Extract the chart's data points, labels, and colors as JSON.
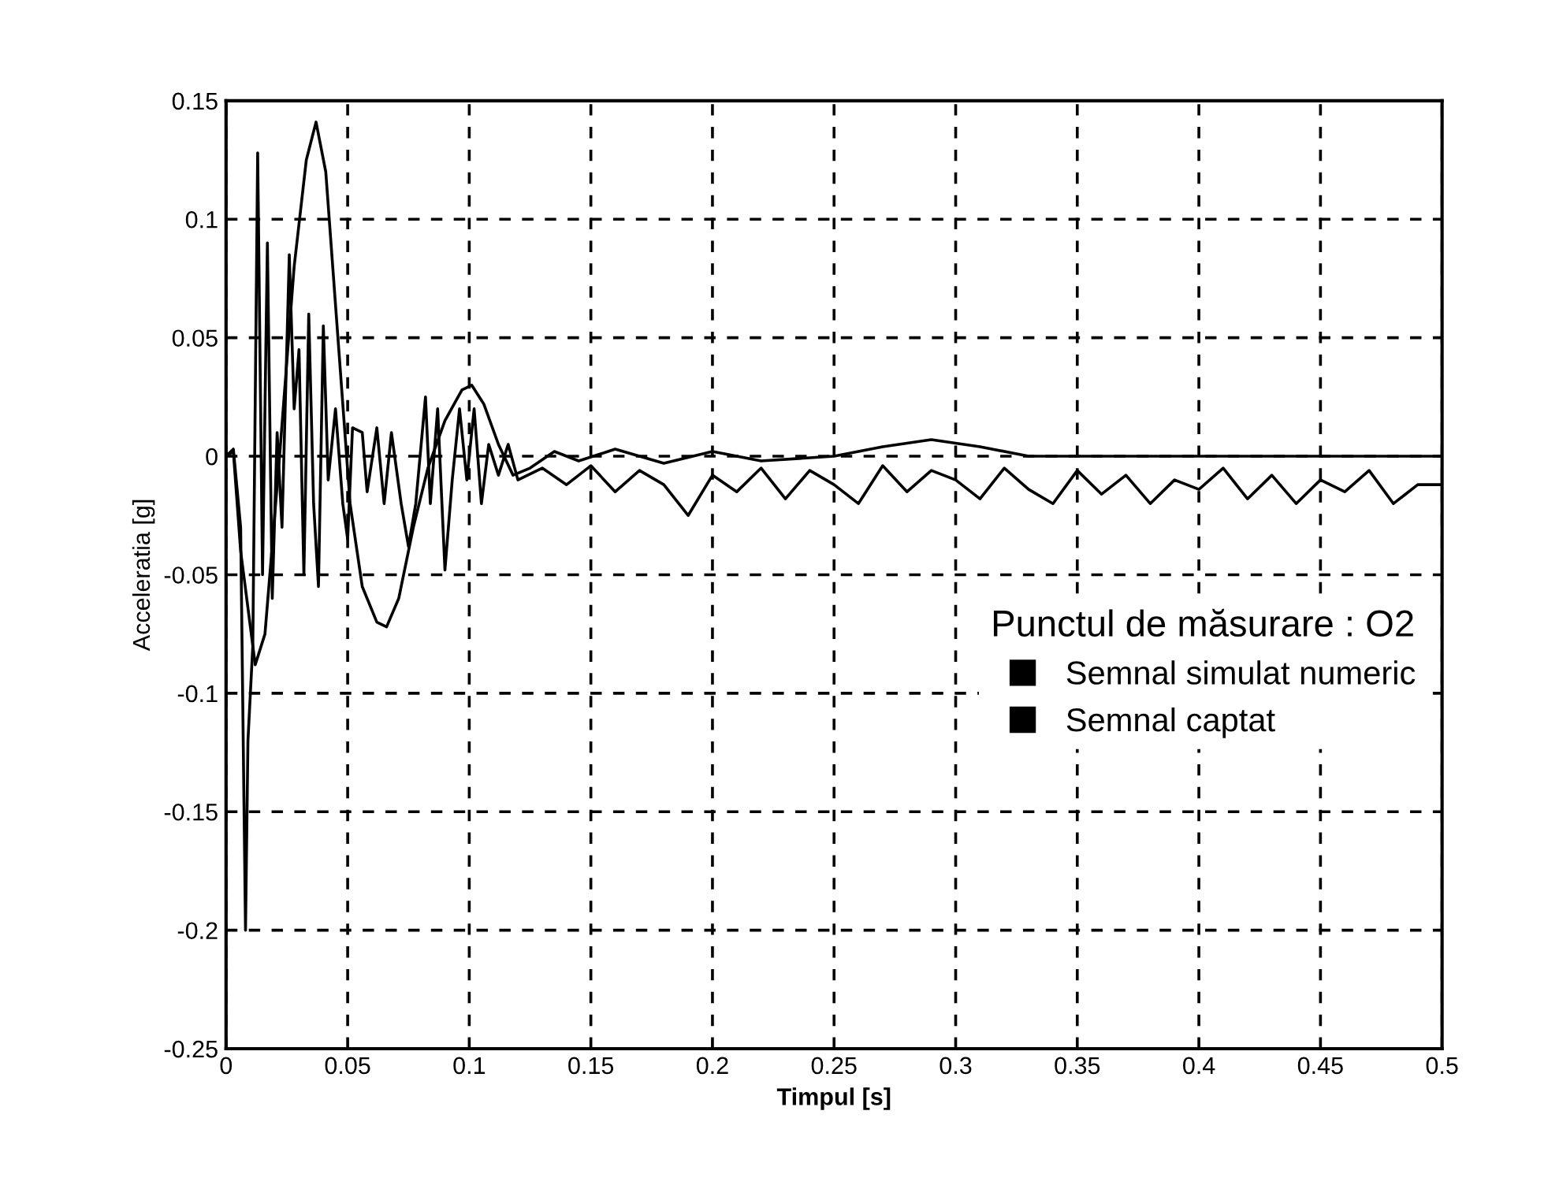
{
  "chart_data": {
    "type": "line",
    "xlabel": "Timpul [s]",
    "ylabel": "Acceleratia [g]",
    "legend_title": "Punctul de măsurare : O2",
    "legend": "bottom right",
    "grid": true,
    "xlim": [
      0,
      0.5
    ],
    "xticks": [
      0,
      0.05,
      0.1,
      0.15,
      0.2,
      0.25,
      0.3,
      0.35,
      0.4,
      0.45,
      0.5
    ],
    "ylim": [
      -0.25,
      0.15
    ],
    "yticks": [
      -0.25,
      -0.2,
      -0.15,
      -0.1,
      -0.05,
      0,
      0.05,
      0.1,
      0.15
    ],
    "series": [
      {
        "name": "Semnal simulat numeric",
        "color": "#000000",
        "x": [
          0,
          0.003,
          0.006,
          0.012,
          0.016,
          0.022,
          0.028,
          0.033,
          0.037,
          0.041,
          0.046,
          0.051,
          0.056,
          0.062,
          0.066,
          0.071,
          0.077,
          0.083,
          0.09,
          0.097,
          0.101,
          0.106,
          0.112,
          0.118,
          0.125,
          0.135,
          0.145,
          0.16,
          0.18,
          0.2,
          0.22,
          0.25,
          0.27,
          0.29,
          0.31,
          0.33,
          0.4,
          0.5
        ],
        "values": [
          0,
          0.002,
          -0.04,
          -0.088,
          -0.075,
          0.0,
          0.08,
          0.125,
          0.141,
          0.12,
          0.05,
          -0.02,
          -0.055,
          -0.07,
          -0.072,
          -0.06,
          -0.03,
          -0.005,
          0.015,
          0.028,
          0.03,
          0.022,
          0.005,
          -0.008,
          -0.005,
          0.002,
          -0.002,
          0.003,
          -0.003,
          0.002,
          -0.002,
          0.0,
          0.004,
          0.007,
          0.004,
          0.0,
          0.0,
          0.0
        ]
      },
      {
        "name": "Semnal captat",
        "color": "#000000",
        "x": [
          0,
          0.003,
          0.006,
          0.008,
          0.009,
          0.011,
          0.013,
          0.015,
          0.017,
          0.019,
          0.021,
          0.023,
          0.026,
          0.028,
          0.03,
          0.032,
          0.034,
          0.036,
          0.038,
          0.04,
          0.042,
          0.045,
          0.048,
          0.05,
          0.052,
          0.056,
          0.058,
          0.062,
          0.065,
          0.068,
          0.072,
          0.075,
          0.078,
          0.082,
          0.084,
          0.087,
          0.09,
          0.093,
          0.096,
          0.099,
          0.102,
          0.105,
          0.108,
          0.112,
          0.116,
          0.12,
          0.13,
          0.14,
          0.15,
          0.16,
          0.17,
          0.18,
          0.19,
          0.2,
          0.21,
          0.22,
          0.23,
          0.24,
          0.25,
          0.26,
          0.27,
          0.28,
          0.29,
          0.3,
          0.31,
          0.32,
          0.33,
          0.34,
          0.35,
          0.36,
          0.37,
          0.38,
          0.39,
          0.4,
          0.41,
          0.42,
          0.43,
          0.44,
          0.45,
          0.46,
          0.47,
          0.48,
          0.49,
          0.5
        ],
        "values": [
          0,
          0.003,
          -0.03,
          -0.2,
          -0.12,
          -0.08,
          0.128,
          -0.05,
          0.09,
          -0.06,
          0.01,
          -0.03,
          0.085,
          0.02,
          0.045,
          -0.05,
          0.06,
          -0.02,
          -0.055,
          0.055,
          -0.01,
          0.02,
          -0.02,
          -0.035,
          0.012,
          0.01,
          -0.015,
          0.012,
          -0.02,
          0.01,
          -0.02,
          -0.038,
          -0.02,
          0.025,
          -0.02,
          0.02,
          -0.048,
          -0.01,
          0.02,
          -0.01,
          0.02,
          -0.02,
          0.005,
          -0.008,
          0.005,
          -0.01,
          -0.005,
          -0.012,
          -0.004,
          -0.015,
          -0.006,
          -0.012,
          -0.025,
          -0.008,
          -0.015,
          -0.005,
          -0.018,
          -0.006,
          -0.012,
          -0.02,
          -0.004,
          -0.015,
          -0.006,
          -0.01,
          -0.018,
          -0.005,
          -0.014,
          -0.02,
          -0.006,
          -0.016,
          -0.008,
          -0.02,
          -0.01,
          -0.014,
          -0.005,
          -0.018,
          -0.008,
          -0.02,
          -0.01,
          -0.015,
          -0.006,
          -0.02,
          -0.012,
          -0.012
        ]
      }
    ]
  }
}
